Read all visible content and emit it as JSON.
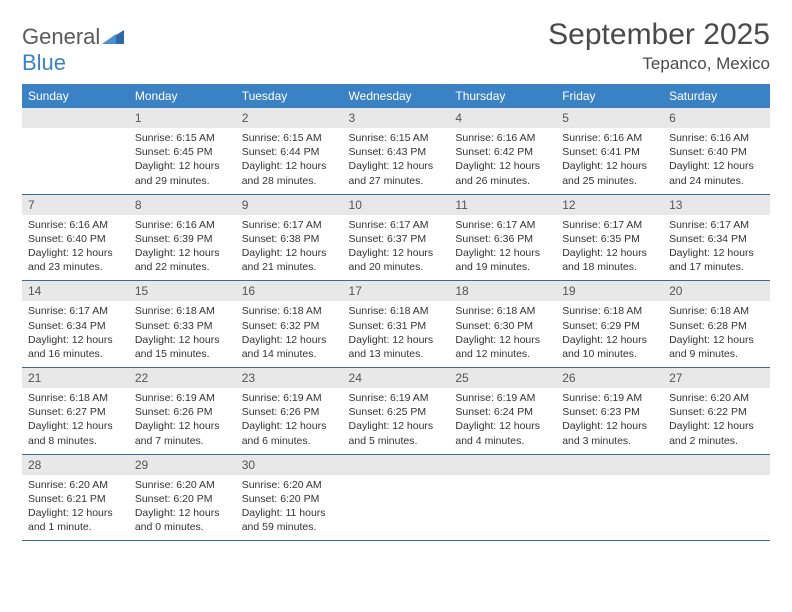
{
  "logo": {
    "part1": "General",
    "part2": "Blue"
  },
  "title": "September 2025",
  "location": "Tepanco, Mexico",
  "colors": {
    "header_bg": "#3b82c4",
    "header_text": "#ffffff",
    "daynum_bg": "#e8e8e8",
    "daynum_text": "#555555",
    "row_border": "#3b6a9a",
    "logo_gray": "#5a5a5a",
    "logo_blue": "#3b82c4",
    "body_text": "#333333",
    "title_text": "#4a4a4a",
    "page_bg": "#ffffff"
  },
  "typography": {
    "title_fontsize": 30,
    "location_fontsize": 17,
    "dayhead_fontsize": 12,
    "daynum_fontsize": 12,
    "cell_fontsize": 10.5,
    "logo_fontsize": 22
  },
  "layout": {
    "columns": 7,
    "rows": 5,
    "cell_width_pct": 14.28
  },
  "day_headers": [
    "Sunday",
    "Monday",
    "Tuesday",
    "Wednesday",
    "Thursday",
    "Friday",
    "Saturday"
  ],
  "weeks": [
    [
      {
        "num": "",
        "sunrise": "",
        "sunset": "",
        "daylight": ""
      },
      {
        "num": "1",
        "sunrise": "Sunrise: 6:15 AM",
        "sunset": "Sunset: 6:45 PM",
        "daylight": "Daylight: 12 hours and 29 minutes."
      },
      {
        "num": "2",
        "sunrise": "Sunrise: 6:15 AM",
        "sunset": "Sunset: 6:44 PM",
        "daylight": "Daylight: 12 hours and 28 minutes."
      },
      {
        "num": "3",
        "sunrise": "Sunrise: 6:15 AM",
        "sunset": "Sunset: 6:43 PM",
        "daylight": "Daylight: 12 hours and 27 minutes."
      },
      {
        "num": "4",
        "sunrise": "Sunrise: 6:16 AM",
        "sunset": "Sunset: 6:42 PM",
        "daylight": "Daylight: 12 hours and 26 minutes."
      },
      {
        "num": "5",
        "sunrise": "Sunrise: 6:16 AM",
        "sunset": "Sunset: 6:41 PM",
        "daylight": "Daylight: 12 hours and 25 minutes."
      },
      {
        "num": "6",
        "sunrise": "Sunrise: 6:16 AM",
        "sunset": "Sunset: 6:40 PM",
        "daylight": "Daylight: 12 hours and 24 minutes."
      }
    ],
    [
      {
        "num": "7",
        "sunrise": "Sunrise: 6:16 AM",
        "sunset": "Sunset: 6:40 PM",
        "daylight": "Daylight: 12 hours and 23 minutes."
      },
      {
        "num": "8",
        "sunrise": "Sunrise: 6:16 AM",
        "sunset": "Sunset: 6:39 PM",
        "daylight": "Daylight: 12 hours and 22 minutes."
      },
      {
        "num": "9",
        "sunrise": "Sunrise: 6:17 AM",
        "sunset": "Sunset: 6:38 PM",
        "daylight": "Daylight: 12 hours and 21 minutes."
      },
      {
        "num": "10",
        "sunrise": "Sunrise: 6:17 AM",
        "sunset": "Sunset: 6:37 PM",
        "daylight": "Daylight: 12 hours and 20 minutes."
      },
      {
        "num": "11",
        "sunrise": "Sunrise: 6:17 AM",
        "sunset": "Sunset: 6:36 PM",
        "daylight": "Daylight: 12 hours and 19 minutes."
      },
      {
        "num": "12",
        "sunrise": "Sunrise: 6:17 AM",
        "sunset": "Sunset: 6:35 PM",
        "daylight": "Daylight: 12 hours and 18 minutes."
      },
      {
        "num": "13",
        "sunrise": "Sunrise: 6:17 AM",
        "sunset": "Sunset: 6:34 PM",
        "daylight": "Daylight: 12 hours and 17 minutes."
      }
    ],
    [
      {
        "num": "14",
        "sunrise": "Sunrise: 6:17 AM",
        "sunset": "Sunset: 6:34 PM",
        "daylight": "Daylight: 12 hours and 16 minutes."
      },
      {
        "num": "15",
        "sunrise": "Sunrise: 6:18 AM",
        "sunset": "Sunset: 6:33 PM",
        "daylight": "Daylight: 12 hours and 15 minutes."
      },
      {
        "num": "16",
        "sunrise": "Sunrise: 6:18 AM",
        "sunset": "Sunset: 6:32 PM",
        "daylight": "Daylight: 12 hours and 14 minutes."
      },
      {
        "num": "17",
        "sunrise": "Sunrise: 6:18 AM",
        "sunset": "Sunset: 6:31 PM",
        "daylight": "Daylight: 12 hours and 13 minutes."
      },
      {
        "num": "18",
        "sunrise": "Sunrise: 6:18 AM",
        "sunset": "Sunset: 6:30 PM",
        "daylight": "Daylight: 12 hours and 12 minutes."
      },
      {
        "num": "19",
        "sunrise": "Sunrise: 6:18 AM",
        "sunset": "Sunset: 6:29 PM",
        "daylight": "Daylight: 12 hours and 10 minutes."
      },
      {
        "num": "20",
        "sunrise": "Sunrise: 6:18 AM",
        "sunset": "Sunset: 6:28 PM",
        "daylight": "Daylight: 12 hours and 9 minutes."
      }
    ],
    [
      {
        "num": "21",
        "sunrise": "Sunrise: 6:18 AM",
        "sunset": "Sunset: 6:27 PM",
        "daylight": "Daylight: 12 hours and 8 minutes."
      },
      {
        "num": "22",
        "sunrise": "Sunrise: 6:19 AM",
        "sunset": "Sunset: 6:26 PM",
        "daylight": "Daylight: 12 hours and 7 minutes."
      },
      {
        "num": "23",
        "sunrise": "Sunrise: 6:19 AM",
        "sunset": "Sunset: 6:26 PM",
        "daylight": "Daylight: 12 hours and 6 minutes."
      },
      {
        "num": "24",
        "sunrise": "Sunrise: 6:19 AM",
        "sunset": "Sunset: 6:25 PM",
        "daylight": "Daylight: 12 hours and 5 minutes."
      },
      {
        "num": "25",
        "sunrise": "Sunrise: 6:19 AM",
        "sunset": "Sunset: 6:24 PM",
        "daylight": "Daylight: 12 hours and 4 minutes."
      },
      {
        "num": "26",
        "sunrise": "Sunrise: 6:19 AM",
        "sunset": "Sunset: 6:23 PM",
        "daylight": "Daylight: 12 hours and 3 minutes."
      },
      {
        "num": "27",
        "sunrise": "Sunrise: 6:20 AM",
        "sunset": "Sunset: 6:22 PM",
        "daylight": "Daylight: 12 hours and 2 minutes."
      }
    ],
    [
      {
        "num": "28",
        "sunrise": "Sunrise: 6:20 AM",
        "sunset": "Sunset: 6:21 PM",
        "daylight": "Daylight: 12 hours and 1 minute."
      },
      {
        "num": "29",
        "sunrise": "Sunrise: 6:20 AM",
        "sunset": "Sunset: 6:20 PM",
        "daylight": "Daylight: 12 hours and 0 minutes."
      },
      {
        "num": "30",
        "sunrise": "Sunrise: 6:20 AM",
        "sunset": "Sunset: 6:20 PM",
        "daylight": "Daylight: 11 hours and 59 minutes."
      },
      {
        "num": "",
        "sunrise": "",
        "sunset": "",
        "daylight": ""
      },
      {
        "num": "",
        "sunrise": "",
        "sunset": "",
        "daylight": ""
      },
      {
        "num": "",
        "sunrise": "",
        "sunset": "",
        "daylight": ""
      },
      {
        "num": "",
        "sunrise": "",
        "sunset": "",
        "daylight": ""
      }
    ]
  ]
}
